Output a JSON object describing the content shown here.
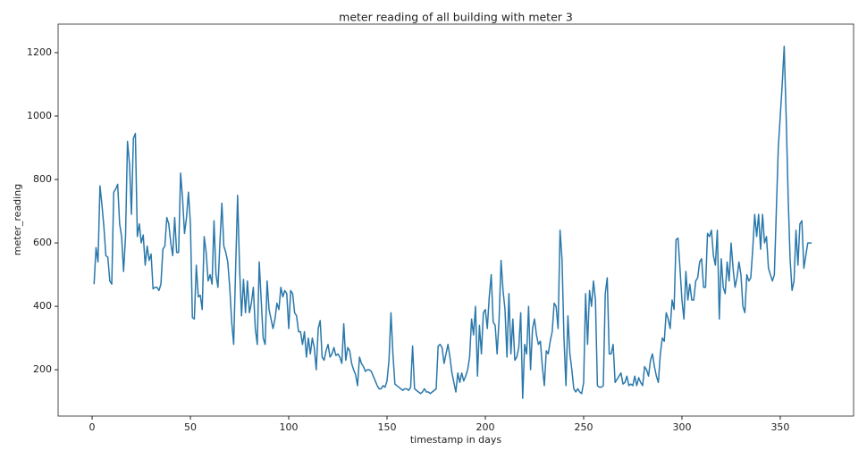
{
  "chart_data": {
    "type": "line",
    "title": "meter reading of all building with meter 3",
    "xlabel": "timestamp in days",
    "ylabel": "meter_reading",
    "xlim": [
      -17.3,
      387.3
    ],
    "ylim": [
      54,
      1290
    ],
    "xticks": [
      0,
      50,
      100,
      150,
      200,
      250,
      300,
      350
    ],
    "yticks": [
      200,
      400,
      600,
      800,
      1000,
      1200
    ],
    "x": [
      1,
      2,
      3,
      4,
      5,
      6,
      7,
      8,
      9,
      10,
      11,
      12,
      13,
      14,
      15,
      16,
      17,
      18,
      19,
      20,
      21,
      22,
      23,
      24,
      25,
      26,
      27,
      28,
      29,
      30,
      31,
      32,
      33,
      34,
      35,
      36,
      37,
      38,
      39,
      40,
      41,
      42,
      43,
      44,
      45,
      46,
      47,
      48,
      49,
      50,
      51,
      52,
      53,
      54,
      55,
      56,
      57,
      58,
      59,
      60,
      61,
      62,
      63,
      64,
      65,
      66,
      67,
      68,
      69,
      70,
      71,
      72,
      73,
      74,
      75,
      76,
      77,
      78,
      79,
      80,
      81,
      82,
      83,
      84,
      85,
      86,
      87,
      88,
      89,
      90,
      91,
      92,
      93,
      94,
      95,
      96,
      97,
      98,
      99,
      100,
      101,
      102,
      103,
      104,
      105,
      106,
      107,
      108,
      109,
      110,
      111,
      112,
      113,
      114,
      115,
      116,
      117,
      118,
      119,
      120,
      121,
      122,
      123,
      124,
      125,
      126,
      127,
      128,
      129,
      130,
      131,
      132,
      133,
      134,
      135,
      136,
      137,
      138,
      139,
      140,
      141,
      142,
      143,
      144,
      145,
      146,
      147,
      148,
      149,
      150,
      151,
      152,
      153,
      154,
      155,
      156,
      157,
      158,
      159,
      160,
      161,
      162,
      163,
      164,
      165,
      166,
      167,
      168,
      169,
      170,
      171,
      172,
      173,
      174,
      175,
      176,
      177,
      178,
      179,
      180,
      181,
      182,
      183,
      184,
      185,
      186,
      187,
      188,
      189,
      190,
      191,
      192,
      193,
      194,
      195,
      196,
      197,
      198,
      199,
      200,
      201,
      202,
      203,
      204,
      205,
      206,
      207,
      208,
      209,
      210,
      211,
      212,
      213,
      214,
      215,
      216,
      217,
      218,
      219,
      220,
      221,
      222,
      223,
      224,
      225,
      226,
      227,
      228,
      229,
      230,
      231,
      232,
      233,
      234,
      235,
      236,
      237,
      238,
      239,
      240,
      241,
      242,
      243,
      244,
      245,
      246,
      247,
      248,
      249,
      250,
      251,
      252,
      253,
      254,
      255,
      256,
      257,
      258,
      259,
      260,
      261,
      262,
      263,
      264,
      265,
      266,
      267,
      268,
      269,
      270,
      271,
      272,
      273,
      274,
      275,
      276,
      277,
      278,
      279,
      280,
      281,
      282,
      283,
      284,
      285,
      286,
      287,
      288,
      289,
      290,
      291,
      292,
      293,
      294,
      295,
      296,
      297,
      298,
      299,
      300,
      301,
      302,
      303,
      304,
      305,
      306,
      307,
      308,
      309,
      310,
      311,
      312,
      313,
      314,
      315,
      316,
      317,
      318,
      319,
      320,
      321,
      322,
      323,
      324,
      325,
      326,
      327,
      328,
      329,
      330,
      331,
      332,
      333,
      334,
      335,
      336,
      337,
      338,
      339,
      340,
      341,
      342,
      343,
      344,
      345,
      346,
      347,
      348,
      349,
      350,
      351,
      352,
      353,
      354,
      355,
      356,
      357,
      358,
      359,
      360,
      361,
      362,
      363,
      364,
      365,
      366
    ],
    "series": [
      {
        "name": "meter_reading",
        "color": "#2a78ab",
        "values": [
          470,
          585,
          540,
          780,
          720,
          650,
          560,
          555,
          480,
          470,
          760,
          770,
          785,
          660,
          620,
          510,
          620,
          920,
          850,
          690,
          930,
          945,
          620,
          660,
          600,
          625,
          530,
          590,
          545,
          565,
          455,
          460,
          460,
          450,
          470,
          580,
          590,
          680,
          660,
          600,
          560,
          680,
          570,
          570,
          820,
          740,
          630,
          680,
          760,
          660,
          365,
          360,
          530,
          430,
          435,
          390,
          620,
          570,
          480,
          500,
          470,
          670,
          500,
          460,
          600,
          725,
          590,
          570,
          540,
          460,
          350,
          280,
          520,
          750,
          520,
          370,
          485,
          380,
          480,
          380,
          410,
          460,
          330,
          280,
          540,
          420,
          300,
          280,
          480,
          390,
          360,
          330,
          360,
          410,
          390,
          460,
          430,
          450,
          440,
          330,
          450,
          440,
          380,
          370,
          320,
          320,
          280,
          320,
          240,
          300,
          250,
          300,
          270,
          200,
          330,
          355,
          240,
          230,
          260,
          280,
          240,
          250,
          270,
          245,
          250,
          240,
          220,
          345,
          230,
          270,
          260,
          220,
          200,
          185,
          150,
          240,
          220,
          210,
          195,
          200,
          200,
          195,
          180,
          165,
          150,
          140,
          140,
          150,
          145,
          165,
          230,
          380,
          250,
          155,
          150,
          145,
          140,
          135,
          140,
          140,
          135,
          145,
          275,
          140,
          135,
          130,
          125,
          130,
          140,
          130,
          130,
          125,
          130,
          135,
          140,
          275,
          280,
          270,
          220,
          250,
          280,
          240,
          190,
          160,
          130,
          190,
          160,
          190,
          165,
          180,
          200,
          240,
          360,
          310,
          400,
          180,
          340,
          250,
          380,
          390,
          330,
          430,
          500,
          350,
          340,
          250,
          360,
          545,
          450,
          390,
          240,
          440,
          250,
          360,
          230,
          240,
          270,
          380,
          110,
          280,
          250,
          400,
          200,
          330,
          360,
          310,
          280,
          290,
          210,
          150,
          260,
          250,
          290,
          320,
          410,
          400,
          330,
          640,
          550,
          300,
          150,
          370,
          250,
          200,
          140,
          130,
          140,
          130,
          125,
          160,
          440,
          280,
          450,
          400,
          480,
          420,
          150,
          145,
          145,
          150,
          440,
          490,
          250,
          250,
          280,
          160,
          170,
          180,
          190,
          155,
          160,
          180,
          150,
          155,
          150,
          180,
          150,
          175,
          160,
          150,
          210,
          200,
          180,
          230,
          250,
          210,
          180,
          160,
          250,
          300,
          290,
          380,
          360,
          330,
          420,
          390,
          610,
          615,
          520,
          420,
          360,
          510,
          420,
          470,
          420,
          420,
          480,
          490,
          540,
          550,
          460,
          460,
          630,
          620,
          640,
          560,
          530,
          640,
          360,
          550,
          460,
          440,
          540,
          480,
          600,
          520,
          460,
          490,
          540,
          500,
          400,
          380,
          500,
          480,
          490,
          580,
          690,
          620,
          690,
          580,
          690,
          600,
          620,
          520,
          500,
          480,
          500,
          700,
          900,
          1000,
          1100,
          1220,
          1000,
          750,
          550,
          450,
          480,
          640,
          530,
          660,
          670,
          520,
          560,
          600,
          600,
          600
        ]
      }
    ]
  }
}
